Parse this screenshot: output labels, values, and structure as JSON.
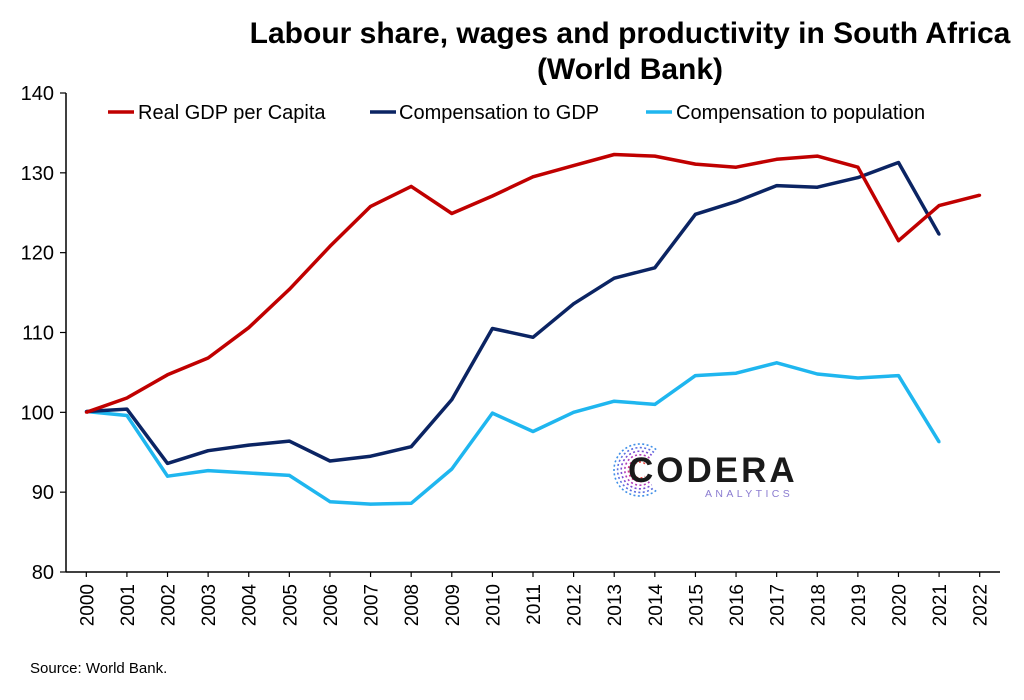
{
  "page": {
    "title_line1": "Labour share, wages and productivity in South Africa",
    "title_line2": "(World Bank)",
    "source": "Source: World Bank."
  },
  "logo": {
    "name": "CODERA",
    "tagline": "ANALYTICS"
  },
  "colors": {
    "real_gdp": "#c00000",
    "comp_gdp": "#0b2463",
    "comp_pop": "#1fb6ef",
    "logo_text": "#1a1a1a",
    "logo_tagline": "#8a7bd0"
  },
  "chart_data": {
    "type": "line",
    "title": "Labour share, wages and productivity in South Africa (World Bank)",
    "xlabel": "",
    "ylabel": "",
    "ylim": [
      80,
      140
    ],
    "yticks": [
      80,
      90,
      100,
      110,
      120,
      130,
      140
    ],
    "x": [
      "2000",
      "2001",
      "2002",
      "2003",
      "2004",
      "2005",
      "2006",
      "2007",
      "2008",
      "2009",
      "2010",
      "2011",
      "2012",
      "2013",
      "2014",
      "2015",
      "2016",
      "2017",
      "2018",
      "2019",
      "2020",
      "2021",
      "2022"
    ],
    "grid": false,
    "legend": "top",
    "series": [
      {
        "name": "Real GDP per Capita",
        "color": "#c00000",
        "values": [
          100,
          101.8,
          104.7,
          106.8,
          110.6,
          115.4,
          120.8,
          125.8,
          128.3,
          124.9,
          127.1,
          129.5,
          130.9,
          132.3,
          132.1,
          131.1,
          130.7,
          131.7,
          132.1,
          130.7,
          121.5,
          125.9,
          127.2
        ]
      },
      {
        "name": "Compensation to GDP",
        "color": "#0b2463",
        "values": [
          100.1,
          100.4,
          93.6,
          95.2,
          95.9,
          96.4,
          93.9,
          94.5,
          95.7,
          101.6,
          110.5,
          109.4,
          113.6,
          116.8,
          118.1,
          124.8,
          126.4,
          128.4,
          128.2,
          129.4,
          131.3,
          122.3,
          null
        ]
      },
      {
        "name": "Compensation to population",
        "color": "#1fb6ef",
        "values": [
          100.1,
          99.6,
          92.0,
          92.7,
          92.4,
          92.1,
          88.8,
          88.5,
          88.6,
          92.9,
          99.9,
          97.6,
          100.0,
          101.4,
          101.0,
          104.6,
          104.9,
          106.2,
          104.8,
          104.3,
          104.6,
          96.3,
          null
        ]
      }
    ]
  }
}
